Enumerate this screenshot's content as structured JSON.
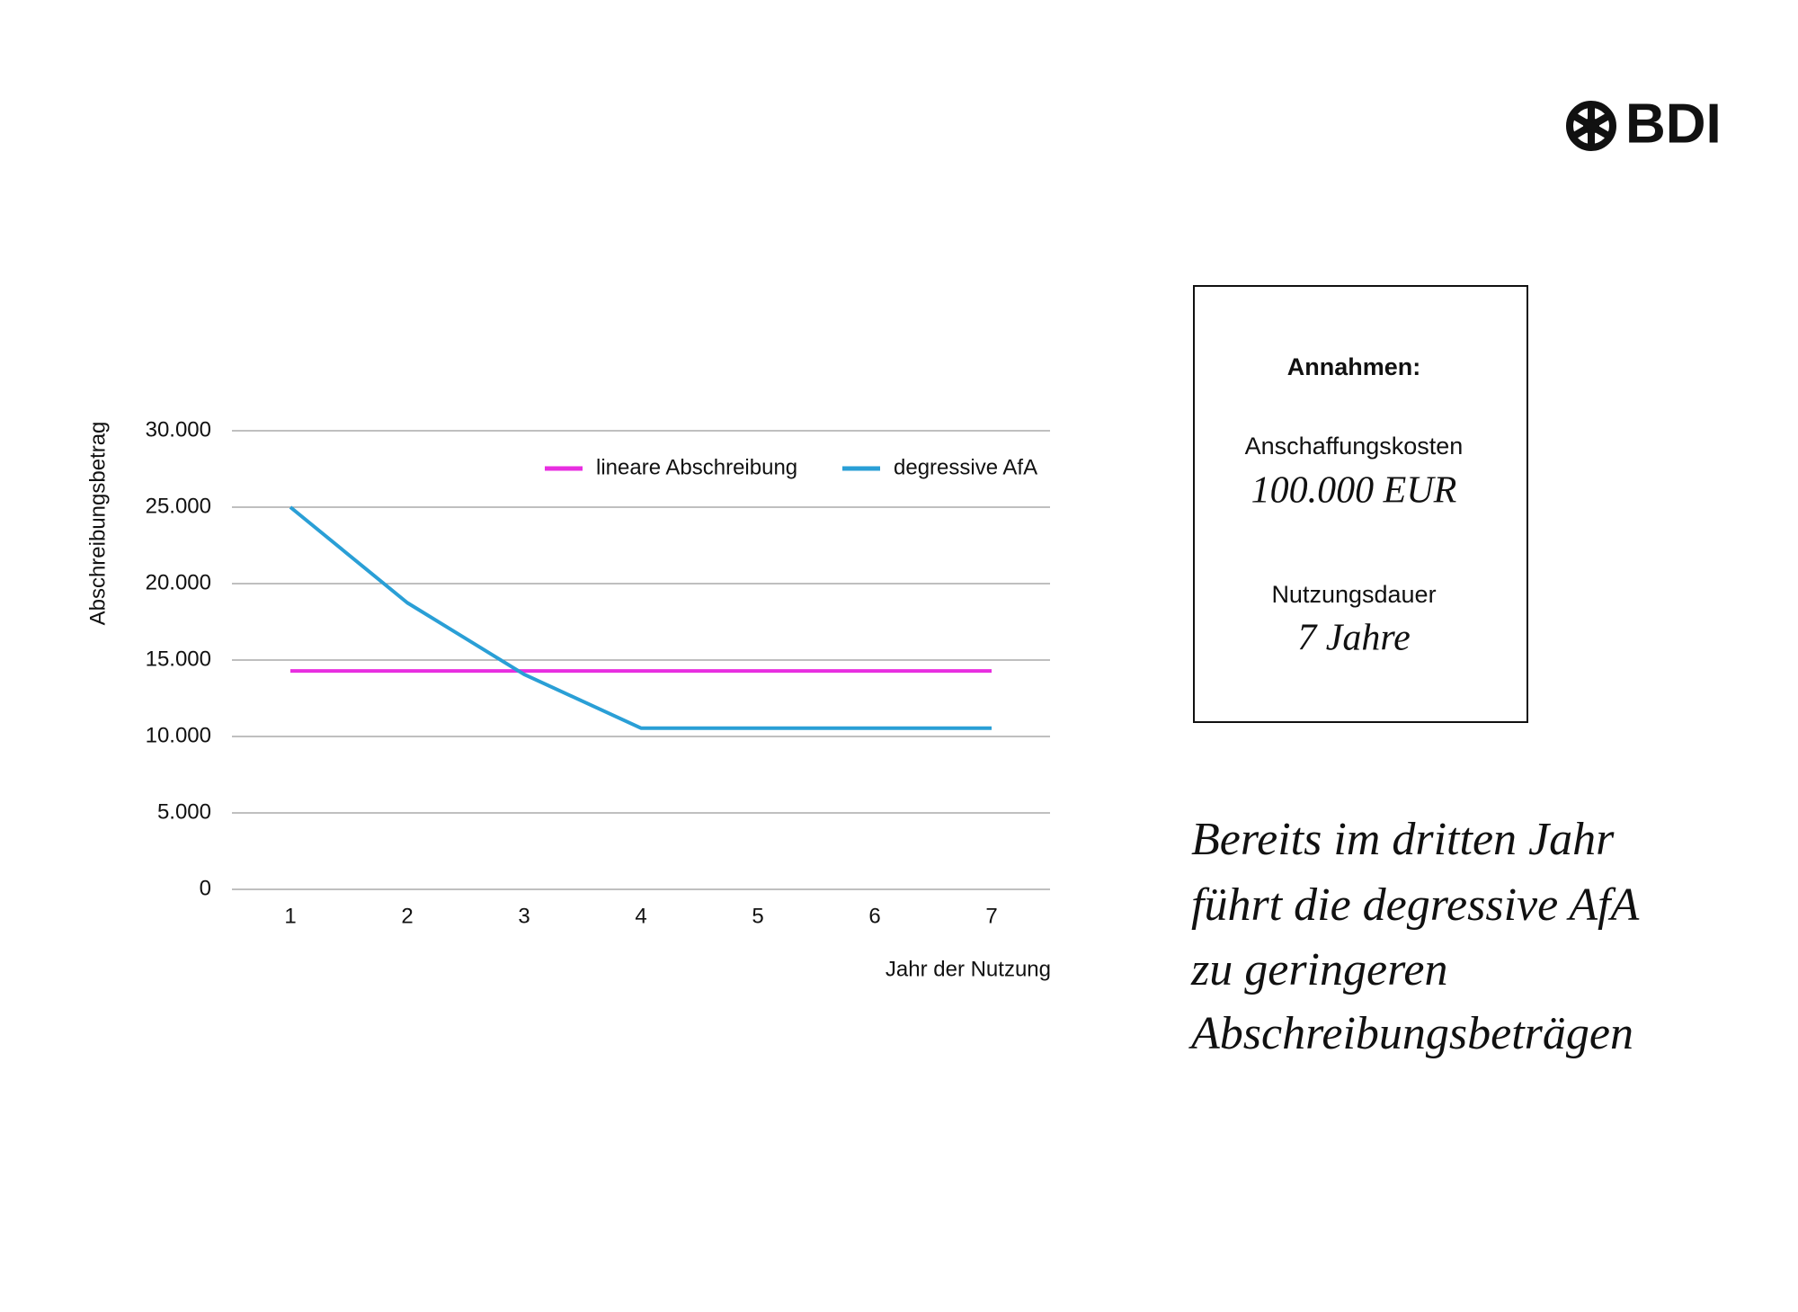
{
  "logo": "BDI",
  "assumptions": {
    "title": "Annahmen:",
    "items": [
      {
        "label": "Anschaffungskosten",
        "value": "100.000 EUR"
      },
      {
        "label": "Nutzungsdauer",
        "value": "7 Jahre"
      }
    ]
  },
  "headline": [
    "Bereits im dritten Jahr",
    "führt die degressive AfA",
    "zu geringeren",
    "Abschreibungsbeträgen"
  ],
  "chart_data": {
    "type": "line",
    "x_label": "Jahr der Nutzung",
    "y_label": "Abschreibungsbetrag",
    "categories": [
      "1",
      "2",
      "3",
      "4",
      "5",
      "6",
      "7"
    ],
    "series": [
      {
        "name": "lineare Abschreibung",
        "color": "#e82ee0",
        "values": [
          14286,
          14286,
          14286,
          14286,
          14286,
          14286,
          14286
        ]
      },
      {
        "name": "degressive AfA",
        "color": "#2a9fd6",
        "values": [
          25000,
          18750,
          14063,
          10547,
          10547,
          10547,
          10547
        ]
      }
    ],
    "ylim": [
      0,
      30000
    ],
    "yticks": [
      0,
      {
        "value": 5000,
        "label": "5.000"
      },
      {
        "value": 10000,
        "label": "10.000"
      },
      {
        "value": 15000,
        "label": "15.000"
      },
      {
        "value": 20000,
        "label": "20.000"
      },
      {
        "value": 25000,
        "label": "25.000"
      },
      {
        "value": 30000,
        "label": "30.000"
      }
    ],
    "grid": true,
    "legend": "top-right"
  }
}
